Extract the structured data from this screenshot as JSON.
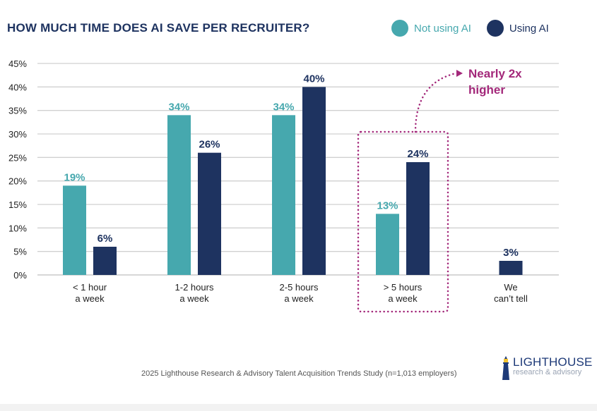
{
  "chart_data": {
    "type": "bar",
    "title": "HOW MUCH TIME DOES AI SAVE PER RECRUITER?",
    "xlabel": "",
    "ylabel": "",
    "ylim": [
      0,
      45
    ],
    "y_ticks": [
      0,
      5,
      10,
      15,
      20,
      25,
      30,
      35,
      40,
      45
    ],
    "y_tick_labels": [
      "0%",
      "5%",
      "10%",
      "15%",
      "20%",
      "25%",
      "30%",
      "35%",
      "40%",
      "45%"
    ],
    "grid": true,
    "legend_position": "top-right",
    "categories": [
      [
        "< 1 hour",
        "a week"
      ],
      [
        "1-2 hours",
        "a week"
      ],
      [
        "2-5 hours",
        "a week"
      ],
      [
        "> 5 hours",
        "a week"
      ],
      [
        "We",
        "can’t tell"
      ]
    ],
    "series": [
      {
        "name": "Not using AI",
        "color": "#46a8ae",
        "values": [
          19,
          34,
          34,
          13,
          null
        ],
        "labels": [
          "19%",
          "34%",
          "34%",
          "13%",
          ""
        ]
      },
      {
        "name": "Using AI",
        "color": "#1e3360",
        "values": [
          6,
          26,
          40,
          24,
          3
        ],
        "labels": [
          "6%",
          "26%",
          "40%",
          "24%",
          "3%"
        ]
      }
    ],
    "annotation": {
      "text": [
        "Nearly 2x",
        "higher"
      ],
      "color": "#a3287a",
      "highlight_category": "> 5 hours a week"
    }
  },
  "legend": {
    "items": [
      {
        "label": "Not using AI",
        "color": "#46a8ae"
      },
      {
        "label": "Using AI",
        "color": "#1e3360"
      }
    ]
  },
  "footer": {
    "source": "2025 Lighthouse Research & Advisory Talent Acquisition Trends Study (n=1,013 employers)",
    "logo_main": "LIGHTHOUSE",
    "logo_sub": "research & advisory"
  }
}
